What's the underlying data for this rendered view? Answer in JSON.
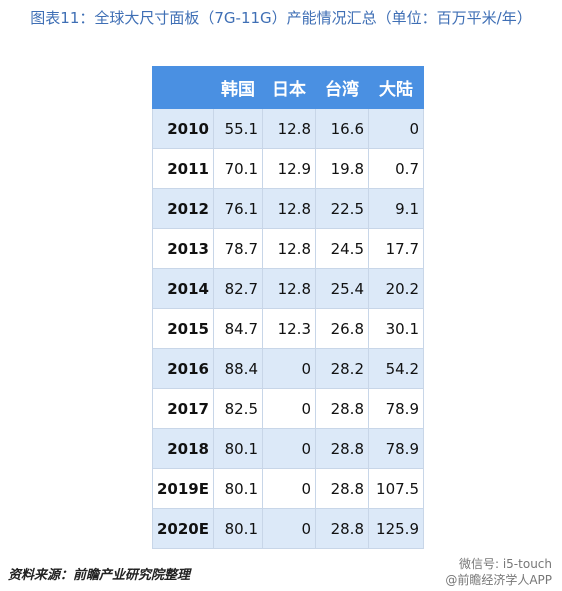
{
  "header": {
    "title": "图表11：全球大尺寸面板（7G-11G）产能情况汇总（单位：百万平米/年）"
  },
  "table": {
    "columns": [
      "韩国",
      "日本",
      "台湾",
      "大陆"
    ],
    "rows": [
      [
        "2010",
        55.1,
        12.8,
        16.6,
        0
      ],
      [
        "2011",
        70.1,
        12.9,
        19.8,
        0.7
      ],
      [
        "2012",
        76.1,
        12.8,
        22.5,
        9.1
      ],
      [
        "2013",
        78.7,
        12.8,
        24.5,
        17.7
      ],
      [
        "2014",
        82.7,
        12.8,
        25.4,
        20.2
      ],
      [
        "2015",
        84.7,
        12.3,
        26.8,
        30.1
      ],
      [
        "2016",
        88.4,
        0,
        28.2,
        54.2
      ],
      [
        "2017",
        82.5,
        0,
        28.8,
        78.9
      ],
      [
        "2018",
        80.1,
        0,
        28.8,
        78.9
      ],
      [
        "2019E",
        80.1,
        0,
        28.8,
        107.5
      ],
      [
        "2020E",
        80.1,
        0,
        28.8,
        125.9
      ]
    ]
  },
  "footer": {
    "source": "资料来源：前瞻产业研究院整理",
    "watermark": [
      "微信号: i5-touch",
      "@前瞻经济学人APP"
    ]
  }
}
